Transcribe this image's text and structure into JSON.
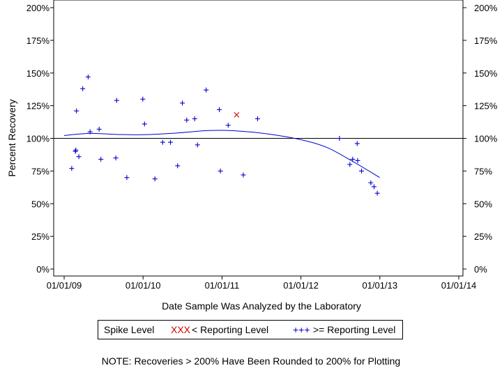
{
  "chart_data": {
    "type": "scatter",
    "xlabel": "Date Sample Was Analyzed by the Laboratory",
    "ylabel": "Percent Recovery",
    "xlim": [
      "2009-01-01",
      "2014-01-01"
    ],
    "ylim": [
      0,
      200
    ],
    "x_ticks": [
      "01/01/09",
      "01/01/10",
      "01/01/11",
      "01/01/12",
      "01/01/13",
      "01/01/14"
    ],
    "y_ticks": [
      "0%",
      "25%",
      "50%",
      "75%",
      "100%",
      "125%",
      "150%",
      "175%",
      "200%"
    ],
    "reference_line": 100,
    "legend_position": "below",
    "colors": {
      "below_reporting": "#cc0000",
      "above_reporting": "#0000cc",
      "trend": "#0000cc",
      "axis": "#000000"
    },
    "series": [
      {
        "name": ">= Reporting Level",
        "marker": "+",
        "points": [
          [
            "2009-02-05",
            77
          ],
          [
            "2009-02-22",
            90
          ],
          [
            "2009-02-24",
            91
          ],
          [
            "2009-02-27",
            121
          ],
          [
            "2009-03-10",
            86
          ],
          [
            "2009-03-28",
            138
          ],
          [
            "2009-04-22",
            147
          ],
          [
            "2009-05-01",
            105
          ],
          [
            "2009-06-12",
            107
          ],
          [
            "2009-06-20",
            84
          ],
          [
            "2009-08-28",
            85
          ],
          [
            "2009-09-01",
            129
          ],
          [
            "2009-10-18",
            70
          ],
          [
            "2009-12-31",
            130
          ],
          [
            "2010-01-08",
            111
          ],
          [
            "2010-02-25",
            69
          ],
          [
            "2010-04-02",
            97
          ],
          [
            "2010-05-08",
            97
          ],
          [
            "2010-06-10",
            79
          ],
          [
            "2010-07-02",
            127
          ],
          [
            "2010-07-22",
            114
          ],
          [
            "2010-08-28",
            115
          ],
          [
            "2010-09-10",
            95
          ],
          [
            "2010-10-20",
            137
          ],
          [
            "2010-12-20",
            122
          ],
          [
            "2010-12-25",
            75
          ],
          [
            "2011-01-30",
            110
          ],
          [
            "2011-04-10",
            72
          ],
          [
            "2011-06-15",
            115
          ],
          [
            "2012-06-28",
            100
          ],
          [
            "2012-08-15",
            80
          ],
          [
            "2012-08-28",
            84
          ],
          [
            "2012-09-18",
            96
          ],
          [
            "2012-09-20",
            83
          ],
          [
            "2012-10-08",
            75
          ],
          [
            "2012-11-20",
            66
          ],
          [
            "2012-12-05",
            63
          ],
          [
            "2012-12-20",
            58
          ]
        ]
      },
      {
        "name": "< Reporting Level",
        "marker": "x",
        "points": [
          [
            "2011-03-10",
            118
          ]
        ]
      }
    ],
    "trend_line": [
      [
        "2009-01-01",
        102.2
      ],
      [
        "2009-05-01",
        103.8
      ],
      [
        "2009-09-01",
        103.0
      ],
      [
        "2010-01-01",
        102.8
      ],
      [
        "2010-06-01",
        104.0
      ],
      [
        "2010-11-01",
        106.0
      ],
      [
        "2011-03-01",
        105.8
      ],
      [
        "2011-08-01",
        103.4
      ],
      [
        "2012-01-01",
        99.0
      ],
      [
        "2012-05-01",
        93.0
      ],
      [
        "2012-09-01",
        82.0
      ],
      [
        "2012-12-31",
        70.0
      ]
    ]
  },
  "legend": {
    "title": "Spike Level",
    "below_symbol": "XXX",
    "below_label": "< Reporting Level",
    "above_symbol": "+++",
    "above_label": ">= Reporting Level"
  },
  "note": "NOTE: Recoveries > 200% Have Been Rounded to 200% for Plotting"
}
